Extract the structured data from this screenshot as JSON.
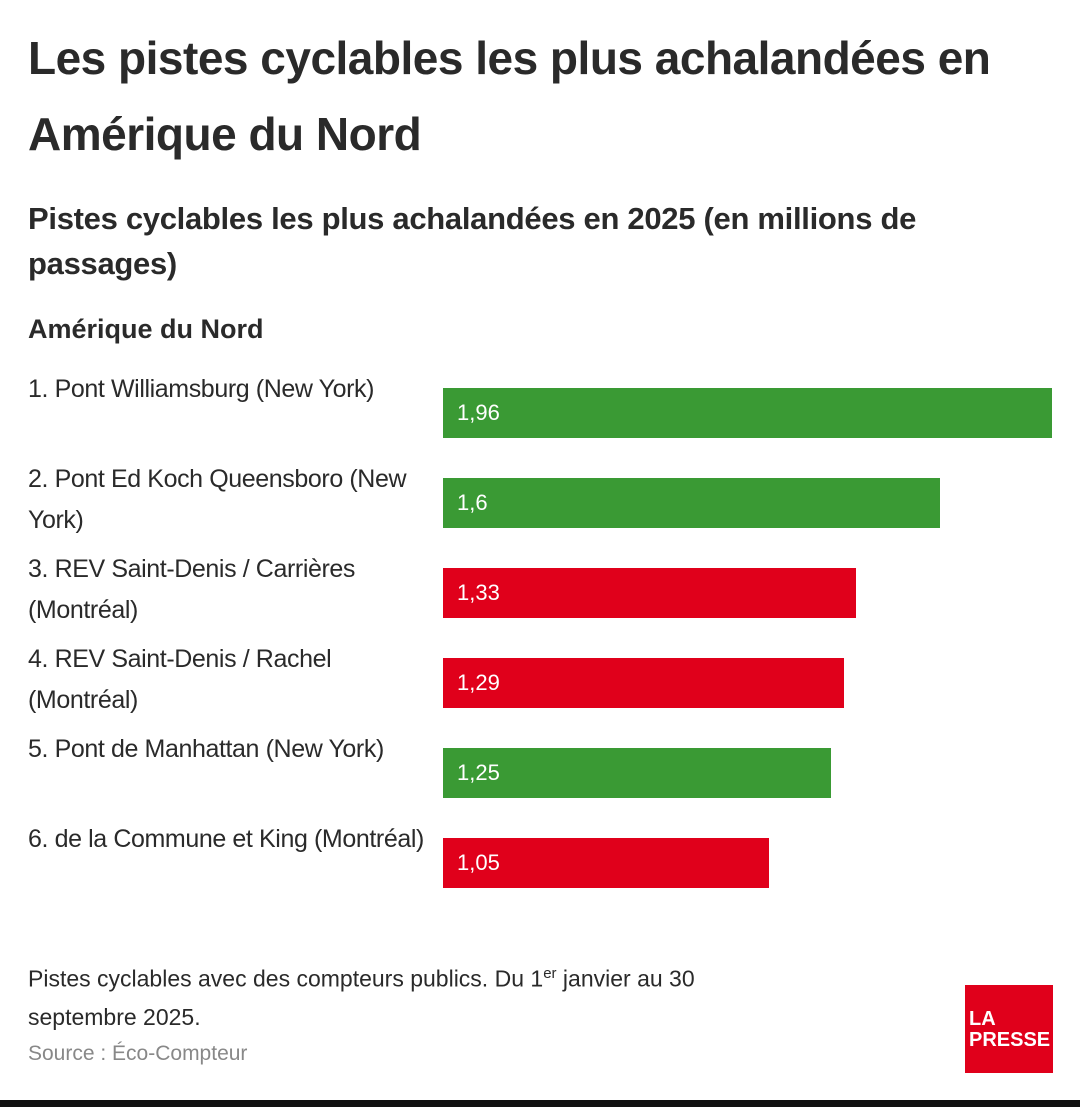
{
  "chart_data": {
    "type": "bar",
    "orientation": "horizontal",
    "title": "Les pistes cyclables les plus achalandées en Amérique du Nord",
    "subtitle": "Pistes cyclables les plus achalandées en 2025 (en millions de passages)",
    "group_label": "Amérique du Nord",
    "categories": [
      "1. Pont Williamsburg (New York)",
      "2. Pont Ed Koch Queensboro (New York)",
      "3. REV Saint-Denis / Carrières (Montréal)",
      "4. REV Saint-Denis / Rachel (Montréal)",
      "5. Pont de Manhattan (New York)",
      "6. de la Commune et King (Montréal)"
    ],
    "values": [
      1.96,
      1.6,
      1.33,
      1.29,
      1.25,
      1.05
    ],
    "value_labels": [
      "1,96",
      "1,6",
      "1,33",
      "1,29",
      "1,25",
      "1,05"
    ],
    "colors": [
      "#3a9a34",
      "#3a9a34",
      "#e0001b",
      "#e0001b",
      "#3a9a34",
      "#e0001b"
    ],
    "note": {
      "before": "Pistes cyclables avec des compteurs publics. Du 1",
      "sup": "er",
      "after": " janvier au 30 septembre 2025."
    },
    "source": "Source : Éco-Compteur",
    "logo": {
      "line1": "LA",
      "line2": "PRESSE"
    }
  }
}
